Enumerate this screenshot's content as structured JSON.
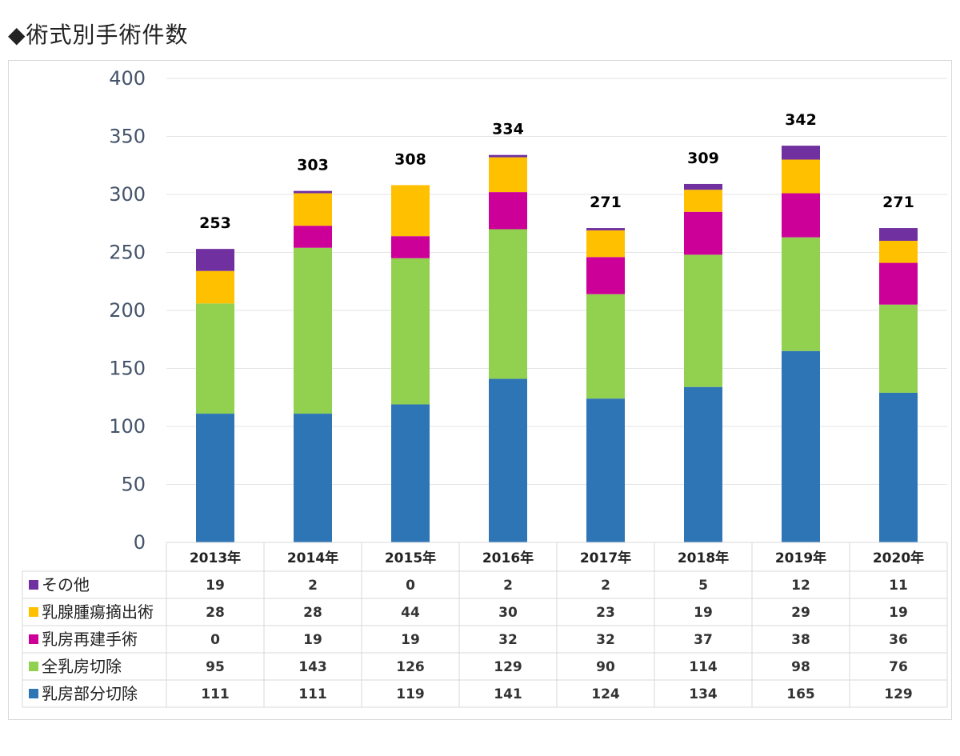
{
  "page": {
    "title": "◆術式別手術件数"
  },
  "chart_data": {
    "type": "bar",
    "stacked": true,
    "categories": [
      "2013年",
      "2014年",
      "2015年",
      "2016年",
      "2017年",
      "2018年",
      "2019年",
      "2020年"
    ],
    "series": [
      {
        "name": "乳房部分切除",
        "color": "#2e75b6",
        "values": [
          111,
          111,
          119,
          141,
          124,
          134,
          165,
          129
        ]
      },
      {
        "name": "全乳房切除",
        "color": "#92d050",
        "values": [
          95,
          143,
          126,
          129,
          90,
          114,
          98,
          76
        ]
      },
      {
        "name": "乳房再建手術",
        "color": "#cc0099",
        "values": [
          0,
          19,
          19,
          32,
          32,
          37,
          38,
          36
        ]
      },
      {
        "name": "乳腺腫瘍摘出術",
        "color": "#ffc000",
        "values": [
          28,
          28,
          44,
          30,
          23,
          19,
          29,
          19
        ]
      },
      {
        "name": "その他",
        "color": "#7030a0",
        "values": [
          19,
          2,
          0,
          2,
          2,
          5,
          12,
          11
        ]
      }
    ],
    "totals": [
      253,
      303,
      308,
      334,
      271,
      309,
      342,
      271
    ],
    "table_rows": [
      "その他",
      "乳腺腫瘍摘出術",
      "乳房再建手術",
      "全乳房切除",
      "乳房部分切除"
    ],
    "ylim": [
      0,
      400
    ],
    "yticks": [
      0,
      50,
      100,
      150,
      200,
      250,
      300,
      350,
      400
    ],
    "grid": true,
    "legend": "data-table"
  }
}
